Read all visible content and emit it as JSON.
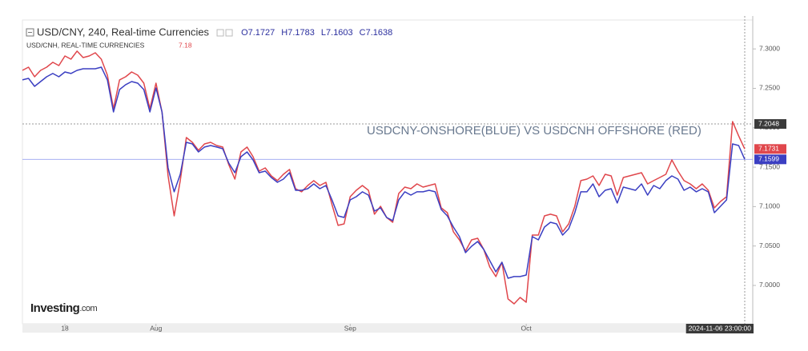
{
  "chart_data": {
    "type": "line",
    "title": "USD/CNY, 240, Real-time Currencies",
    "ohlc": [
      {
        "label": "O",
        "value": 7.1727
      },
      {
        "label": "H",
        "value": 7.1783
      },
      {
        "label": "L",
        "value": 7.1603
      },
      {
        "label": "C",
        "value": 7.1638
      }
    ],
    "subtitle": "USD/CNH, REAL-TIME CURRENCIES",
    "subtitle_value": 7.18,
    "annotation": "USDCNY-ONSHORE(BLUE) VS USDCNH OFFSHORE (RED)",
    "logo": {
      "name": "Investing",
      "suffix": ".com"
    },
    "cursor_time": "2024-11-06 23:00:00",
    "categories": [
      null,
      null,
      null,
      null,
      null,
      null,
      null,
      "18",
      null,
      null,
      null,
      null,
      null,
      null,
      null,
      null,
      null,
      null,
      null,
      null,
      null,
      null,
      "Aug",
      null,
      null,
      null,
      null,
      null,
      null,
      null,
      null,
      null,
      null,
      null,
      null,
      null,
      null,
      null,
      null,
      null,
      null,
      null,
      null,
      null,
      null,
      null,
      null,
      null,
      null,
      null,
      null,
      null,
      null,
      null,
      "Sep",
      null,
      null,
      null,
      null,
      null,
      null,
      null,
      null,
      null,
      null,
      null,
      null,
      null,
      null,
      null,
      null,
      null,
      null,
      null,
      null,
      null,
      null,
      null,
      null,
      null,
      null,
      null,
      null,
      "Oct",
      null,
      null,
      null,
      null,
      null,
      null,
      null,
      null,
      null,
      null,
      null,
      null,
      null,
      null,
      null,
      null,
      null,
      null,
      null,
      null,
      null,
      null,
      null,
      null,
      null,
      null,
      null,
      null,
      null,
      null,
      null,
      null,
      null,
      null,
      null,
      null
    ],
    "series": [
      {
        "name": "USD/CNY",
        "color": "#3b3fc2",
        "values": [
          7.2607,
          7.2627,
          7.2525,
          7.2586,
          7.2647,
          7.2688,
          7.2647,
          7.2708,
          7.2688,
          7.2728,
          7.2748,
          7.2748,
          7.2748,
          7.2769,
          7.2607,
          7.2201,
          7.2485,
          7.2546,
          7.2586,
          7.2566,
          7.2485,
          7.2201,
          7.2505,
          7.2201,
          7.1491,
          7.1187,
          7.141,
          7.1815,
          7.1795,
          7.1694,
          7.1755,
          7.1775,
          7.1755,
          7.1734,
          7.1552,
          7.143,
          7.1633,
          7.1694,
          7.1592,
          7.143,
          7.145,
          7.1369,
          7.1308,
          7.1349,
          7.143,
          7.1207,
          7.1207,
          7.1227,
          7.1288,
          7.1227,
          7.1268,
          7.1085,
          7.0882,
          7.0862,
          7.1085,
          7.1126,
          7.1187,
          7.1146,
          7.0943,
          7.0984,
          7.0862,
          7.0822,
          7.1085,
          7.1187,
          7.1146,
          7.1187,
          7.1187,
          7.1207,
          7.1187,
          7.0963,
          7.0882,
          7.074,
          7.0619,
          7.0416,
          7.0497,
          7.0558,
          7.0456,
          7.0314,
          7.0172,
          7.0294,
          7.0091,
          7.0112,
          7.0112,
          7.0132,
          7.0619,
          7.0578,
          7.074,
          7.0801,
          7.0781,
          7.0639,
          7.072,
          7.0923,
          7.1187,
          7.1187,
          7.1288,
          7.1126,
          7.1207,
          7.1227,
          7.1045,
          7.1247,
          7.1227,
          7.1207,
          7.1288,
          7.1146,
          7.1268,
          7.1227,
          7.1329,
          7.1389,
          7.1349,
          7.1207,
          7.1247,
          7.1187,
          7.1227,
          7.1187,
          7.0923,
          7.1004,
          7.1085,
          7.1795,
          7.1775,
          7.1599
        ]
      },
      {
        "name": "USD/CNH",
        "color": "#e0474c",
        "values": [
          7.2728,
          7.2769,
          7.2647,
          7.2728,
          7.2769,
          7.283,
          7.2789,
          7.2911,
          7.287,
          7.2972,
          7.289,
          7.2911,
          7.2951,
          7.287,
          7.2667,
          7.2241,
          7.2607,
          7.2647,
          7.2708,
          7.2667,
          7.2566,
          7.2241,
          7.2566,
          7.2201,
          7.1389,
          7.0882,
          7.1329,
          7.1876,
          7.1815,
          7.1714,
          7.1795,
          7.1815,
          7.1775,
          7.1755,
          7.1531,
          7.1349,
          7.1694,
          7.1755,
          7.1633,
          7.145,
          7.1491,
          7.1389,
          7.1329,
          7.141,
          7.1471,
          7.1227,
          7.1187,
          7.1268,
          7.1329,
          7.1268,
          7.1308,
          7.1024,
          7.0761,
          7.0781,
          7.1126,
          7.1207,
          7.1268,
          7.1207,
          7.0903,
          7.1004,
          7.0862,
          7.0801,
          7.1166,
          7.1247,
          7.1227,
          7.1288,
          7.1247,
          7.1268,
          7.1288,
          7.0984,
          7.0923,
          7.068,
          7.0578,
          7.0436,
          7.0578,
          7.0598,
          7.0456,
          7.0233,
          7.0112,
          7.0294,
          6.9828,
          6.9767,
          6.9848,
          6.9787,
          7.0639,
          7.0639,
          7.0882,
          7.0903,
          7.0882,
          7.068,
          7.0781,
          7.1004,
          7.1329,
          7.1349,
          7.1389,
          7.1268,
          7.141,
          7.1389,
          7.1146,
          7.1369,
          7.1389,
          7.141,
          7.143,
          7.1288,
          7.1329,
          7.1369,
          7.141,
          7.1592,
          7.145,
          7.1329,
          7.1288,
          7.1227,
          7.1288,
          7.1207,
          7.0984,
          7.1065,
          7.1126,
          7.2079,
          7.1897,
          7.1731
        ]
      }
    ],
    "ylim": [
      6.9513,
      7.3367
    ],
    "yticks": [
      {
        "value": 7.0,
        "label": "7.0000"
      },
      {
        "value": 7.05,
        "label": "7.0500"
      },
      {
        "value": 7.1,
        "label": "7.1000"
      },
      {
        "value": 7.15,
        "label": "7.1500"
      },
      {
        "value": 7.2,
        "label": "7.2000"
      },
      {
        "value": 7.25,
        "label": "7.2500"
      },
      {
        "value": 7.3,
        "label": "7.3000"
      }
    ],
    "price_labels": [
      {
        "value": 7.2048,
        "color": "#3a3a3a"
      },
      {
        "value": 7.1731,
        "color": "#e0474c"
      },
      {
        "value": 7.1599,
        "color": "#3b3fc2"
      }
    ]
  }
}
